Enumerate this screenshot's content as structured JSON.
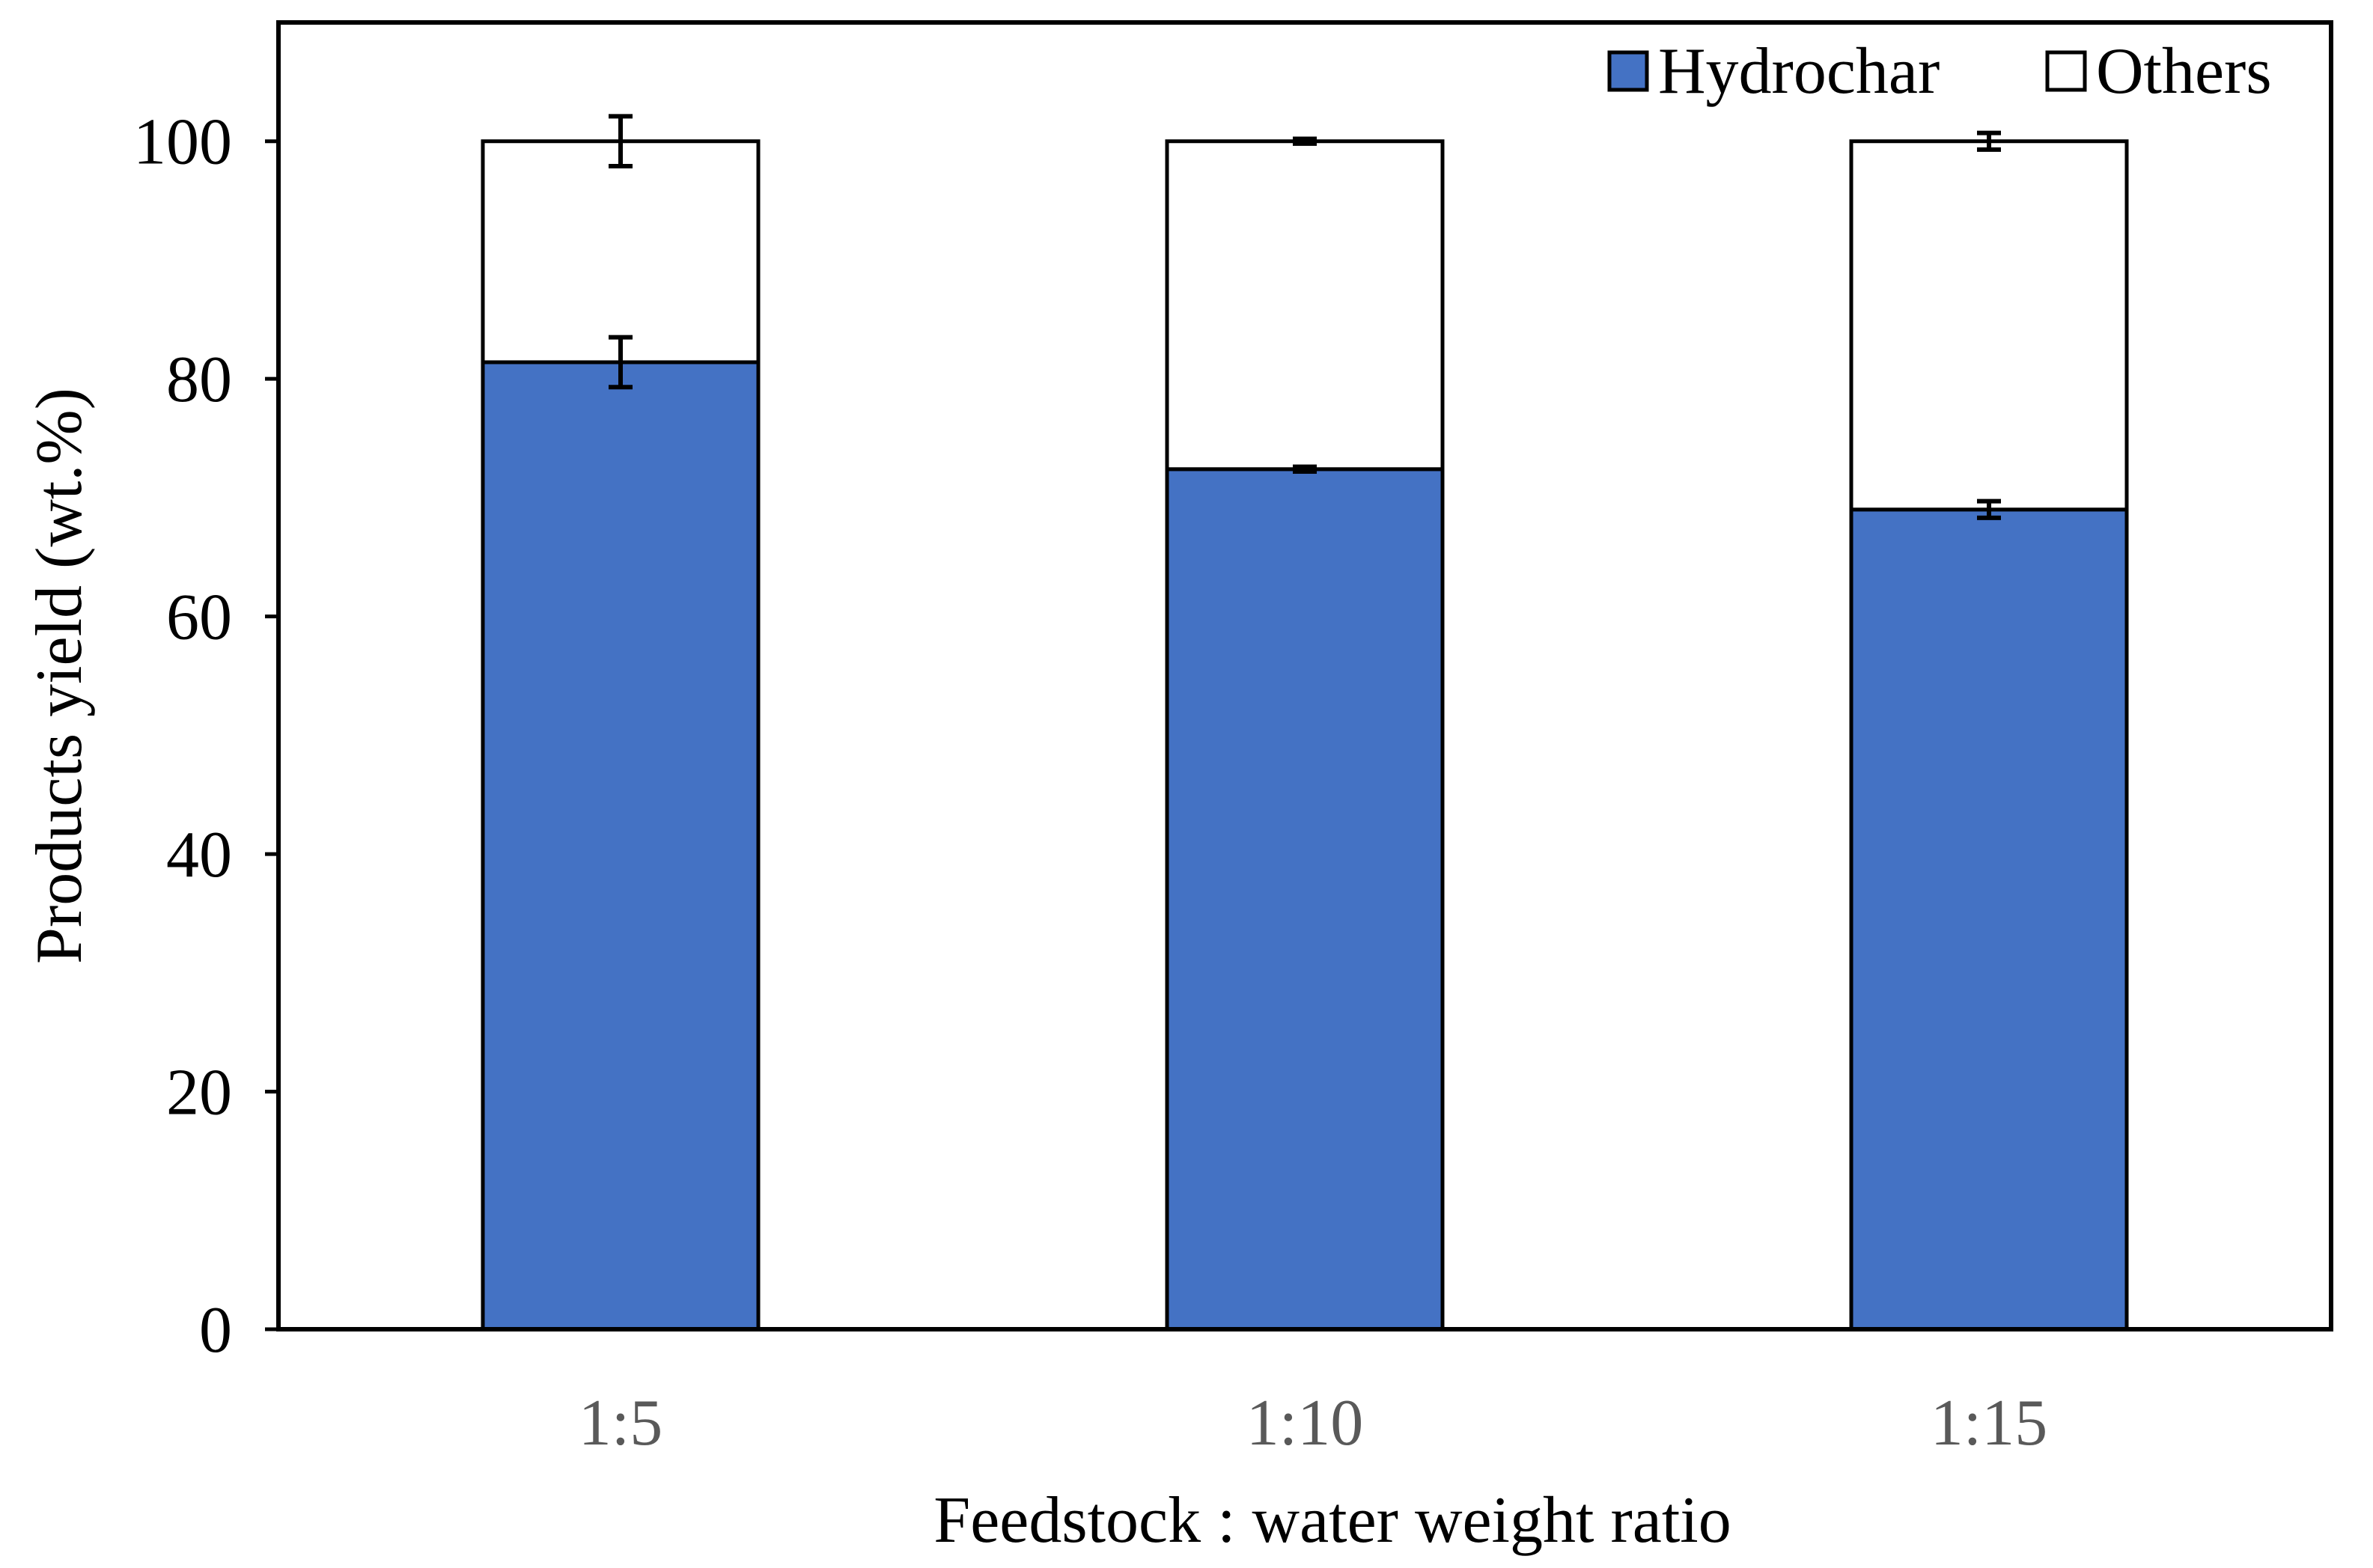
{
  "chart_data": {
    "type": "bar",
    "stacked": true,
    "title": "",
    "xlabel": "Feedstock : water weight ratio",
    "ylabel": "Products yield (wt.%)",
    "ylim": [
      0,
      110
    ],
    "yticks": [
      0,
      20,
      40,
      60,
      80,
      100
    ],
    "ytick_labels": [
      "0",
      "20",
      "40",
      "60",
      "80",
      "100"
    ],
    "grid": false,
    "legend_position": "top-right",
    "categories": [
      "1:5",
      "1:10",
      "1:15"
    ],
    "series": [
      {
        "name": "Hydrochar",
        "color": "#4472C4",
        "values": [
          81.4,
          72.4,
          69.0
        ],
        "errors": [
          2.1,
          0.2,
          0.7
        ]
      },
      {
        "name": "Others",
        "color": "#FFFFFF",
        "values": [
          18.6,
          27.6,
          31.0
        ],
        "errors": [
          2.1,
          0.2,
          0.7
        ]
      }
    ]
  }
}
